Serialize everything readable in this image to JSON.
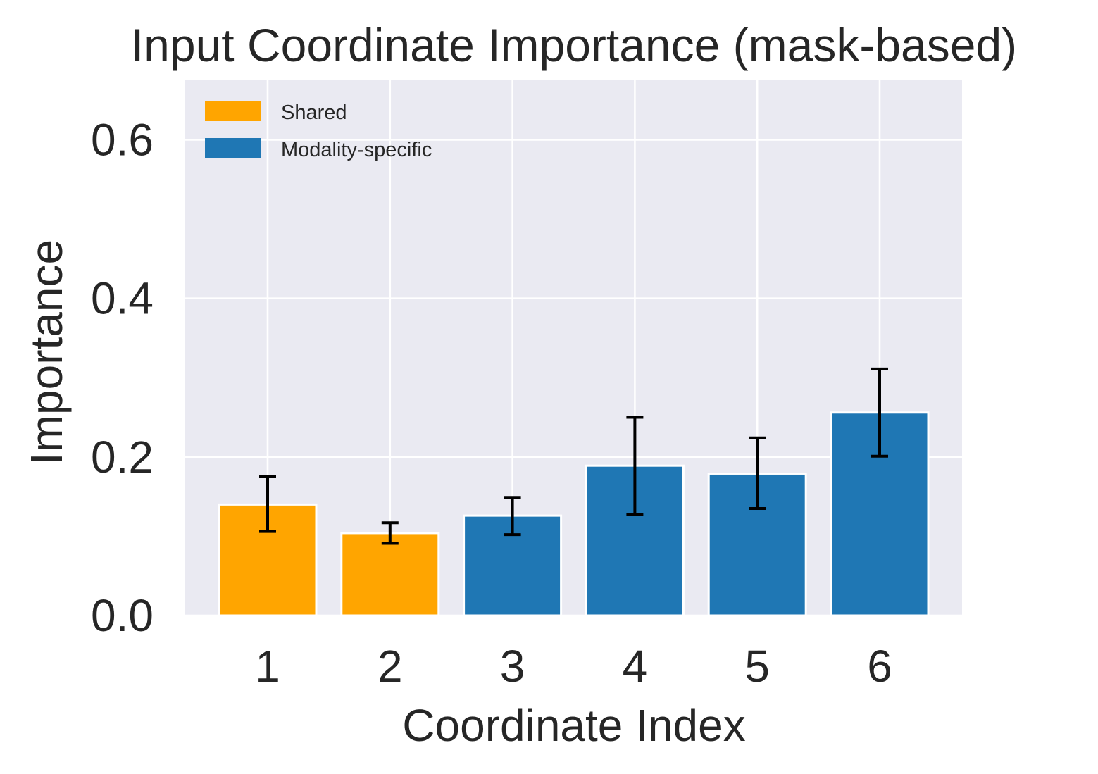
{
  "chart_data": {
    "type": "bar",
    "title": "Input Coordinate Importance (mask-based)",
    "xlabel": "Coordinate Index",
    "ylabel": "Importance",
    "categories": [
      "1",
      "2",
      "3",
      "4",
      "5",
      "6"
    ],
    "values": [
      0.14,
      0.104,
      0.126,
      0.189,
      0.179,
      0.256
    ],
    "error_low": [
      0.106,
      0.091,
      0.102,
      0.127,
      0.135,
      0.201
    ],
    "error_high": [
      0.175,
      0.117,
      0.149,
      0.25,
      0.224,
      0.311
    ],
    "bar_groups": [
      "Shared",
      "Shared",
      "Modality-specific",
      "Modality-specific",
      "Modality-specific",
      "Modality-specific"
    ],
    "groups": [
      {
        "name": "Shared",
        "color": "#FFA500"
      },
      {
        "name": "Modality-specific",
        "color": "#1F77B4"
      }
    ],
    "ylim": [
      0,
      0.675
    ],
    "yticks": [
      0.0,
      0.2,
      0.4,
      0.6
    ],
    "ytick_labels": [
      "0.0",
      "0.2",
      "0.4",
      "0.6"
    ],
    "grid": true,
    "legend_position": "top-left",
    "plot_background": "#EAEAF2",
    "error_bar_color": "#000000"
  }
}
